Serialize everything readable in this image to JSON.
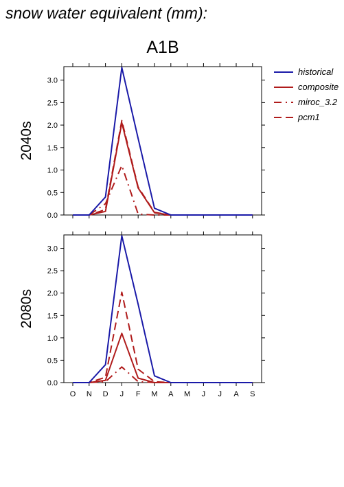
{
  "title": "snow water equivalent (mm):",
  "scenario": "A1B",
  "colors": {
    "historical": "#1a1aa8",
    "scenario": "#b01c1c"
  },
  "legend": [
    {
      "name": "historical",
      "color": "#1a1aa8",
      "dash": "solid"
    },
    {
      "name": "composite",
      "color": "#b01c1c",
      "dash": "solid"
    },
    {
      "name": "miroc_3.2",
      "color": "#b01c1c",
      "dash": "dashdot"
    },
    {
      "name": "pcm1",
      "color": "#b01c1c",
      "dash": "dashed"
    }
  ],
  "chart_data": [
    {
      "type": "line",
      "panel_label": "2040s",
      "categories": [
        "O",
        "N",
        "D",
        "J",
        "F",
        "M",
        "A",
        "M",
        "J",
        "J",
        "A",
        "S"
      ],
      "ylim": [
        0,
        3.3
      ],
      "yticks": [
        0.0,
        0.5,
        1.0,
        1.5,
        2.0,
        2.5,
        3.0
      ],
      "ytick_labels": [
        "0.0",
        "0.5",
        "1.0",
        "1.5",
        "2.0",
        "2.5",
        "3.0"
      ],
      "grid": false,
      "series": [
        {
          "name": "historical",
          "values": [
            0,
            0,
            0.4,
            3.28,
            1.7,
            0.15,
            0,
            0,
            0,
            0,
            0,
            0
          ]
        },
        {
          "name": "composite",
          "values": [
            0,
            0,
            0.08,
            2.05,
            0.6,
            0.05,
            0,
            0,
            0,
            0,
            0,
            0
          ]
        },
        {
          "name": "miroc_3.2",
          "values": [
            0,
            0,
            0.25,
            1.1,
            0.02,
            0,
            0,
            0,
            0,
            0,
            0,
            0
          ]
        },
        {
          "name": "pcm1",
          "values": [
            0,
            0,
            0.12,
            2.1,
            0.62,
            0.06,
            0,
            0,
            0,
            0,
            0,
            0
          ]
        }
      ]
    },
    {
      "type": "line",
      "panel_label": "2080s",
      "categories": [
        "O",
        "N",
        "D",
        "J",
        "F",
        "M",
        "A",
        "M",
        "J",
        "J",
        "A",
        "S"
      ],
      "ylim": [
        0,
        3.3
      ],
      "yticks": [
        0.0,
        0.5,
        1.0,
        1.5,
        2.0,
        2.5,
        3.0
      ],
      "ytick_labels": [
        "0.0",
        "0.5",
        "1.0",
        "1.5",
        "2.0",
        "2.5",
        "3.0"
      ],
      "grid": false,
      "series": [
        {
          "name": "historical",
          "values": [
            0,
            0,
            0.4,
            3.28,
            1.75,
            0.15,
            0,
            0,
            0,
            0,
            0,
            0
          ]
        },
        {
          "name": "composite",
          "values": [
            0,
            0,
            0.05,
            1.1,
            0.1,
            0,
            0,
            0,
            0,
            0,
            0,
            0
          ]
        },
        {
          "name": "miroc_3.2",
          "values": [
            0,
            0,
            0.02,
            0.35,
            0.02,
            0,
            0,
            0,
            0,
            0,
            0,
            0
          ]
        },
        {
          "name": "pcm1",
          "values": [
            0,
            0,
            0.12,
            2.02,
            0.3,
            0.02,
            0,
            0,
            0,
            0,
            0,
            0
          ]
        }
      ]
    }
  ]
}
